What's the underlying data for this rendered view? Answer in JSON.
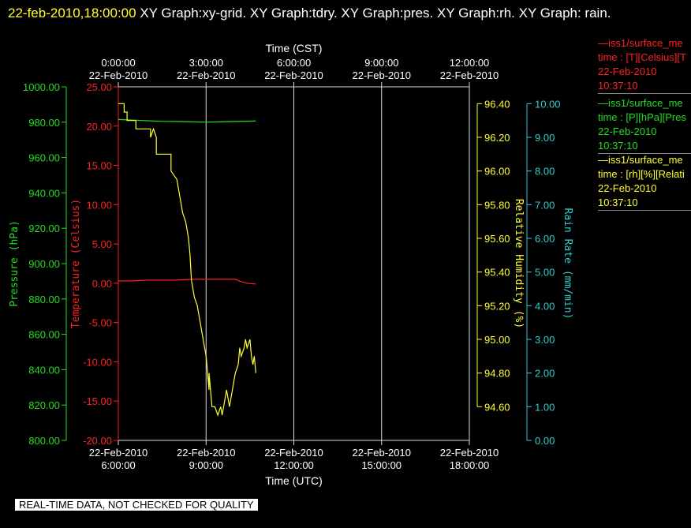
{
  "title": {
    "timestamp": "22-feb-2010,18:00:00",
    "graphs": "  XY Graph:xy-grid.  XY Graph:tdry.  XY Graph:pres.  XY Graph:rh.  XY Graph: rain."
  },
  "colors": {
    "temperature": "#ff2020",
    "pressure": "#22dd22",
    "humidity": "#ffff33",
    "rain": "#33cccc",
    "grid": "#dddddd"
  },
  "chart_data": {
    "type": "line",
    "x_top": {
      "label": "Time (CST)",
      "ticks": [
        [
          "0:00:00",
          "22-Feb-2010"
        ],
        [
          "3:00:00",
          "22-Feb-2010"
        ],
        [
          "6:00:00",
          "22-Feb-2010"
        ],
        [
          "9:00:00",
          "22-Feb-2010"
        ],
        [
          "12:00:00",
          "22-Feb-2010"
        ]
      ]
    },
    "x_bottom": {
      "label": "Time (UTC)",
      "ticks": [
        [
          "22-Feb-2010",
          "6:00:00"
        ],
        [
          "22-Feb-2010",
          "9:00:00"
        ],
        [
          "22-Feb-2010",
          "12:00:00"
        ],
        [
          "22-Feb-2010",
          "15:00:00"
        ],
        [
          "22-Feb-2010",
          "18:00:00"
        ]
      ]
    },
    "xlim_hours_utc": [
      6,
      18
    ],
    "axes": {
      "pressure": {
        "label": "Pressure (hPa)",
        "ylim": [
          800,
          1000
        ],
        "ticks": [
          "1000.00",
          "980.00",
          "960.00",
          "940.00",
          "920.00",
          "900.00",
          "880.00",
          "860.00",
          "840.00",
          "820.00",
          "800.00"
        ]
      },
      "temperature": {
        "label": "Temperature (Celsius)",
        "ylim": [
          -20,
          25
        ],
        "ticks": [
          "25.00",
          "20.00",
          "15.00",
          "10.00",
          "5.00",
          "0.00",
          "-5.00",
          "-10.00",
          "-15.00",
          "-20.00"
        ]
      },
      "humidity": {
        "label": "Relative Humidity (%)",
        "ylim": [
          94.4,
          96.5
        ],
        "ticks": [
          "96.40",
          "96.20",
          "96.00",
          "95.80",
          "95.60",
          "95.40",
          "95.20",
          "95.00",
          "94.80",
          "94.60"
        ]
      },
      "rain": {
        "label": "Rain Rate (mm/min)",
        "ylim": [
          0,
          10.5
        ],
        "ticks": [
          "10.00",
          "9.00",
          "8.00",
          "7.00",
          "6.00",
          "5.00",
          "4.00",
          "3.00",
          "2.00",
          "1.00",
          "0.00"
        ]
      }
    },
    "series": [
      {
        "name": "iss1/surface_me",
        "axis": "pressure",
        "x": [
          6.0,
          6.3,
          6.6,
          7.0,
          7.5,
          8.0,
          8.5,
          9.0,
          9.5,
          10.0,
          10.5,
          10.7
        ],
        "y": [
          981.5,
          981.3,
          981.1,
          980.8,
          980.5,
          980.4,
          980.2,
          980.0,
          980.2,
          980.4,
          980.6,
          980.7
        ]
      },
      {
        "name": "iss1/surface_me",
        "axis": "temperature",
        "x": [
          6.0,
          6.5,
          7.0,
          7.5,
          8.0,
          8.5,
          9.0,
          9.5,
          10.0,
          10.2,
          10.4,
          10.7
        ],
        "y": [
          0.3,
          0.3,
          0.4,
          0.4,
          0.4,
          0.5,
          0.5,
          0.5,
          0.5,
          0.2,
          0.0,
          -0.1
        ]
      },
      {
        "name": "iss1/surface_me",
        "axis": "humidity",
        "x": [
          6.0,
          6.2,
          6.2,
          6.3,
          6.3,
          6.6,
          6.6,
          7.1,
          7.1,
          7.2,
          7.3,
          7.3,
          7.8,
          7.8,
          8.0,
          8.1,
          8.2,
          8.3,
          8.4,
          8.45,
          8.5,
          8.6,
          8.7,
          8.8,
          8.9,
          9.0,
          9.1,
          9.1,
          9.2,
          9.3,
          9.4,
          9.5,
          9.55,
          9.6,
          9.65,
          9.7,
          9.8,
          9.9,
          10.0,
          10.1,
          10.15,
          10.2,
          10.3,
          10.35,
          10.4,
          10.5,
          10.55,
          10.6,
          10.65,
          10.7
        ],
        "y": [
          96.4,
          96.4,
          96.35,
          96.35,
          96.3,
          96.3,
          96.25,
          96.25,
          96.2,
          96.25,
          96.2,
          96.1,
          96.1,
          96.0,
          95.95,
          95.85,
          95.75,
          95.7,
          95.6,
          95.5,
          95.35,
          95.25,
          95.2,
          95.1,
          95.0,
          94.9,
          94.7,
          94.8,
          94.6,
          94.6,
          94.55,
          94.6,
          94.55,
          94.6,
          94.65,
          94.7,
          94.6,
          94.7,
          94.8,
          94.85,
          94.95,
          94.9,
          94.95,
          95.0,
          94.95,
          95.0,
          94.9,
          94.85,
          94.9,
          94.8
        ]
      }
    ],
    "grid": true
  },
  "legend": [
    {
      "name": "iss1/surface_me",
      "line": "time : [T][Celsius][T",
      "date": "22-Feb-2010",
      "time": "10:37:10",
      "color": "#ff2020"
    },
    {
      "name": "iss1/surface_me",
      "line": "time : [P][hPa][Pres",
      "date": "22-Feb-2010",
      "time": "10:37:10",
      "color": "#22dd22"
    },
    {
      "name": "iss1/surface_me",
      "line": "time : [rh][%][Relati",
      "date": "22-Feb-2010",
      "time": "10:37:10",
      "color": "#ffff33"
    }
  ],
  "notice": "REAL-TIME DATA, NOT CHECKED FOR QUALITY"
}
